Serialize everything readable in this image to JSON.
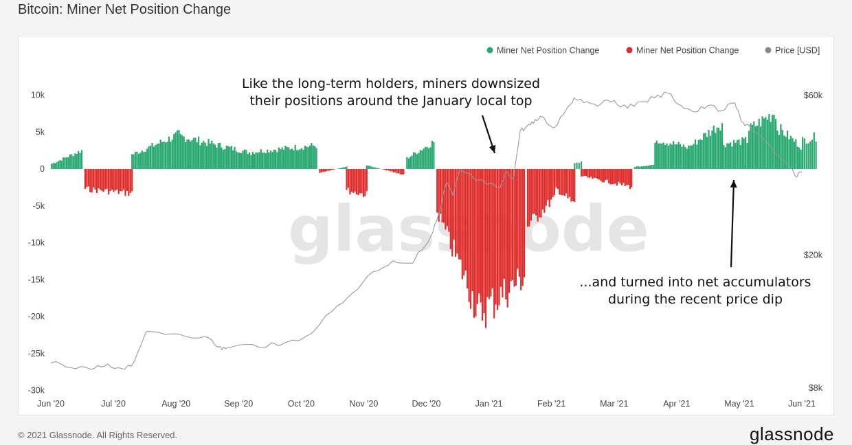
{
  "header": {
    "title": "Bitcoin: Miner Net Position Change"
  },
  "footer": {
    "copyright": "© 2021 Glassnode. All Rights Reserved.",
    "brand": "glassnode"
  },
  "watermark": "glassnode",
  "colors": {
    "positive": "#26a86f",
    "negative": "#e02b2b",
    "price": "#9a9a9a"
  },
  "chart_data": {
    "type": "bar",
    "title": "Bitcoin: Miner Net Position Change",
    "legend": [
      {
        "label": "Miner Net Position Change",
        "color": "#26a86f",
        "icon": "dot-icon"
      },
      {
        "label": "Miner Net Position Change",
        "color": "#e02b2b",
        "icon": "dot-icon"
      },
      {
        "label": "Price [USD]",
        "color": "#888888",
        "icon": "dot-icon"
      }
    ],
    "legend_position": "top-right",
    "x_labels": [
      "Jun '20",
      "Jul '20",
      "Aug '20",
      "Sep '20",
      "Oct '20",
      "Nov '20",
      "Dec '20",
      "Jan '21",
      "Feb '21",
      "Mar '21",
      "Apr '21",
      "May '21",
      "Jun '21"
    ],
    "y_left": {
      "ticks": [
        10000,
        5000,
        0,
        -5000,
        -10000,
        -15000,
        -20000,
        -25000,
        -30000
      ],
      "labels": [
        "10k",
        "5k",
        "0",
        "-5k",
        "-10k",
        "-15k",
        "-20k",
        "-25k",
        "-30k"
      ],
      "range": [
        -30000,
        12000
      ]
    },
    "y_right": {
      "scale": "log",
      "ticks": [
        60000,
        20000,
        8000
      ],
      "labels": [
        "$60k",
        "$20k",
        "$8k"
      ]
    },
    "grid": false,
    "bar_segments": [
      {
        "from": 0,
        "to": 4.5,
        "start": 700,
        "end": 2600
      },
      {
        "from": 5,
        "to": 12,
        "start": -2800,
        "end": -3400
      },
      {
        "from": 12,
        "to": 19,
        "start": 2000,
        "end": 4800
      },
      {
        "from": 19,
        "to": 30,
        "start": 4600,
        "end": 2200
      },
      {
        "from": 30,
        "to": 39.5,
        "start": 2400,
        "end": 3300
      },
      {
        "from": 40,
        "to": 44,
        "start": -500,
        "end": 300
      },
      {
        "from": 44,
        "to": 47,
        "start": -3000,
        "end": -3600
      },
      {
        "from": 47,
        "to": 52.5,
        "start": 500,
        "end": -800
      },
      {
        "from": 53,
        "to": 57,
        "start": 1500,
        "end": 3800
      },
      {
        "from": 57.5,
        "to": 64,
        "start": -6000,
        "end": -20500
      },
      {
        "from": 64,
        "to": 70.5,
        "start": -20000,
        "end": -15000
      },
      {
        "from": 71,
        "to": 75,
        "start": -8000,
        "end": -4000
      },
      {
        "from": 75,
        "to": 78,
        "start": -2500,
        "end": -5000
      },
      {
        "from": 78,
        "to": 79,
        "start": 800,
        "end": 1000
      },
      {
        "from": 79,
        "to": 86.5,
        "start": -1000,
        "end": -2500
      },
      {
        "from": 87,
        "to": 90,
        "start": 300,
        "end": 600
      },
      {
        "from": 90,
        "to": 95,
        "start": 4200,
        "end": 3000
      },
      {
        "from": 95,
        "to": 100,
        "start": 3000,
        "end": 6500
      },
      {
        "from": 100,
        "to": 104,
        "start": 3500,
        "end": 4000
      },
      {
        "from": 104,
        "to": 108,
        "start": 5500,
        "end": 8000
      },
      {
        "from": 108,
        "to": 112,
        "start": 6000,
        "end": 3000
      },
      {
        "from": 112,
        "to": 114,
        "start": 4000,
        "end": 4500
      }
    ],
    "price_series": {
      "t": [
        0,
        3,
        6,
        8,
        10,
        12,
        14,
        15,
        19,
        23,
        25,
        26,
        30,
        34,
        38,
        42,
        45,
        48,
        51,
        54,
        57,
        58,
        59,
        60,
        61,
        63,
        65,
        67,
        68,
        69,
        70,
        71,
        72,
        73,
        75,
        77,
        78,
        80,
        82,
        84,
        86,
        88,
        90,
        92,
        94,
        96,
        98,
        100,
        102,
        103,
        104,
        106,
        108,
        110,
        111,
        112
      ],
      "price": [
        9500,
        9200,
        9100,
        9300,
        9200,
        9300,
        11500,
        11800,
        11600,
        11400,
        10600,
        10500,
        10800,
        10700,
        11400,
        13600,
        15400,
        17800,
        19200,
        18900,
        23500,
        27000,
        33000,
        30000,
        36000,
        34000,
        32500,
        31800,
        35500,
        34000,
        47000,
        48500,
        49500,
        52000,
        48000,
        55000,
        59000,
        57500,
        56500,
        58000,
        55000,
        57500,
        59000,
        61000,
        56000,
        53500,
        56000,
        54000,
        57000,
        50000,
        49000,
        45000,
        40000,
        37000,
        34500,
        35500
      ]
    },
    "annotations": [
      {
        "lines": [
          "Like the long-term holders, miners downsized",
          "their positions around the January local top"
        ]
      },
      {
        "lines": [
          "...and turned into net accumulators",
          "during the recent price dip"
        ]
      }
    ]
  }
}
